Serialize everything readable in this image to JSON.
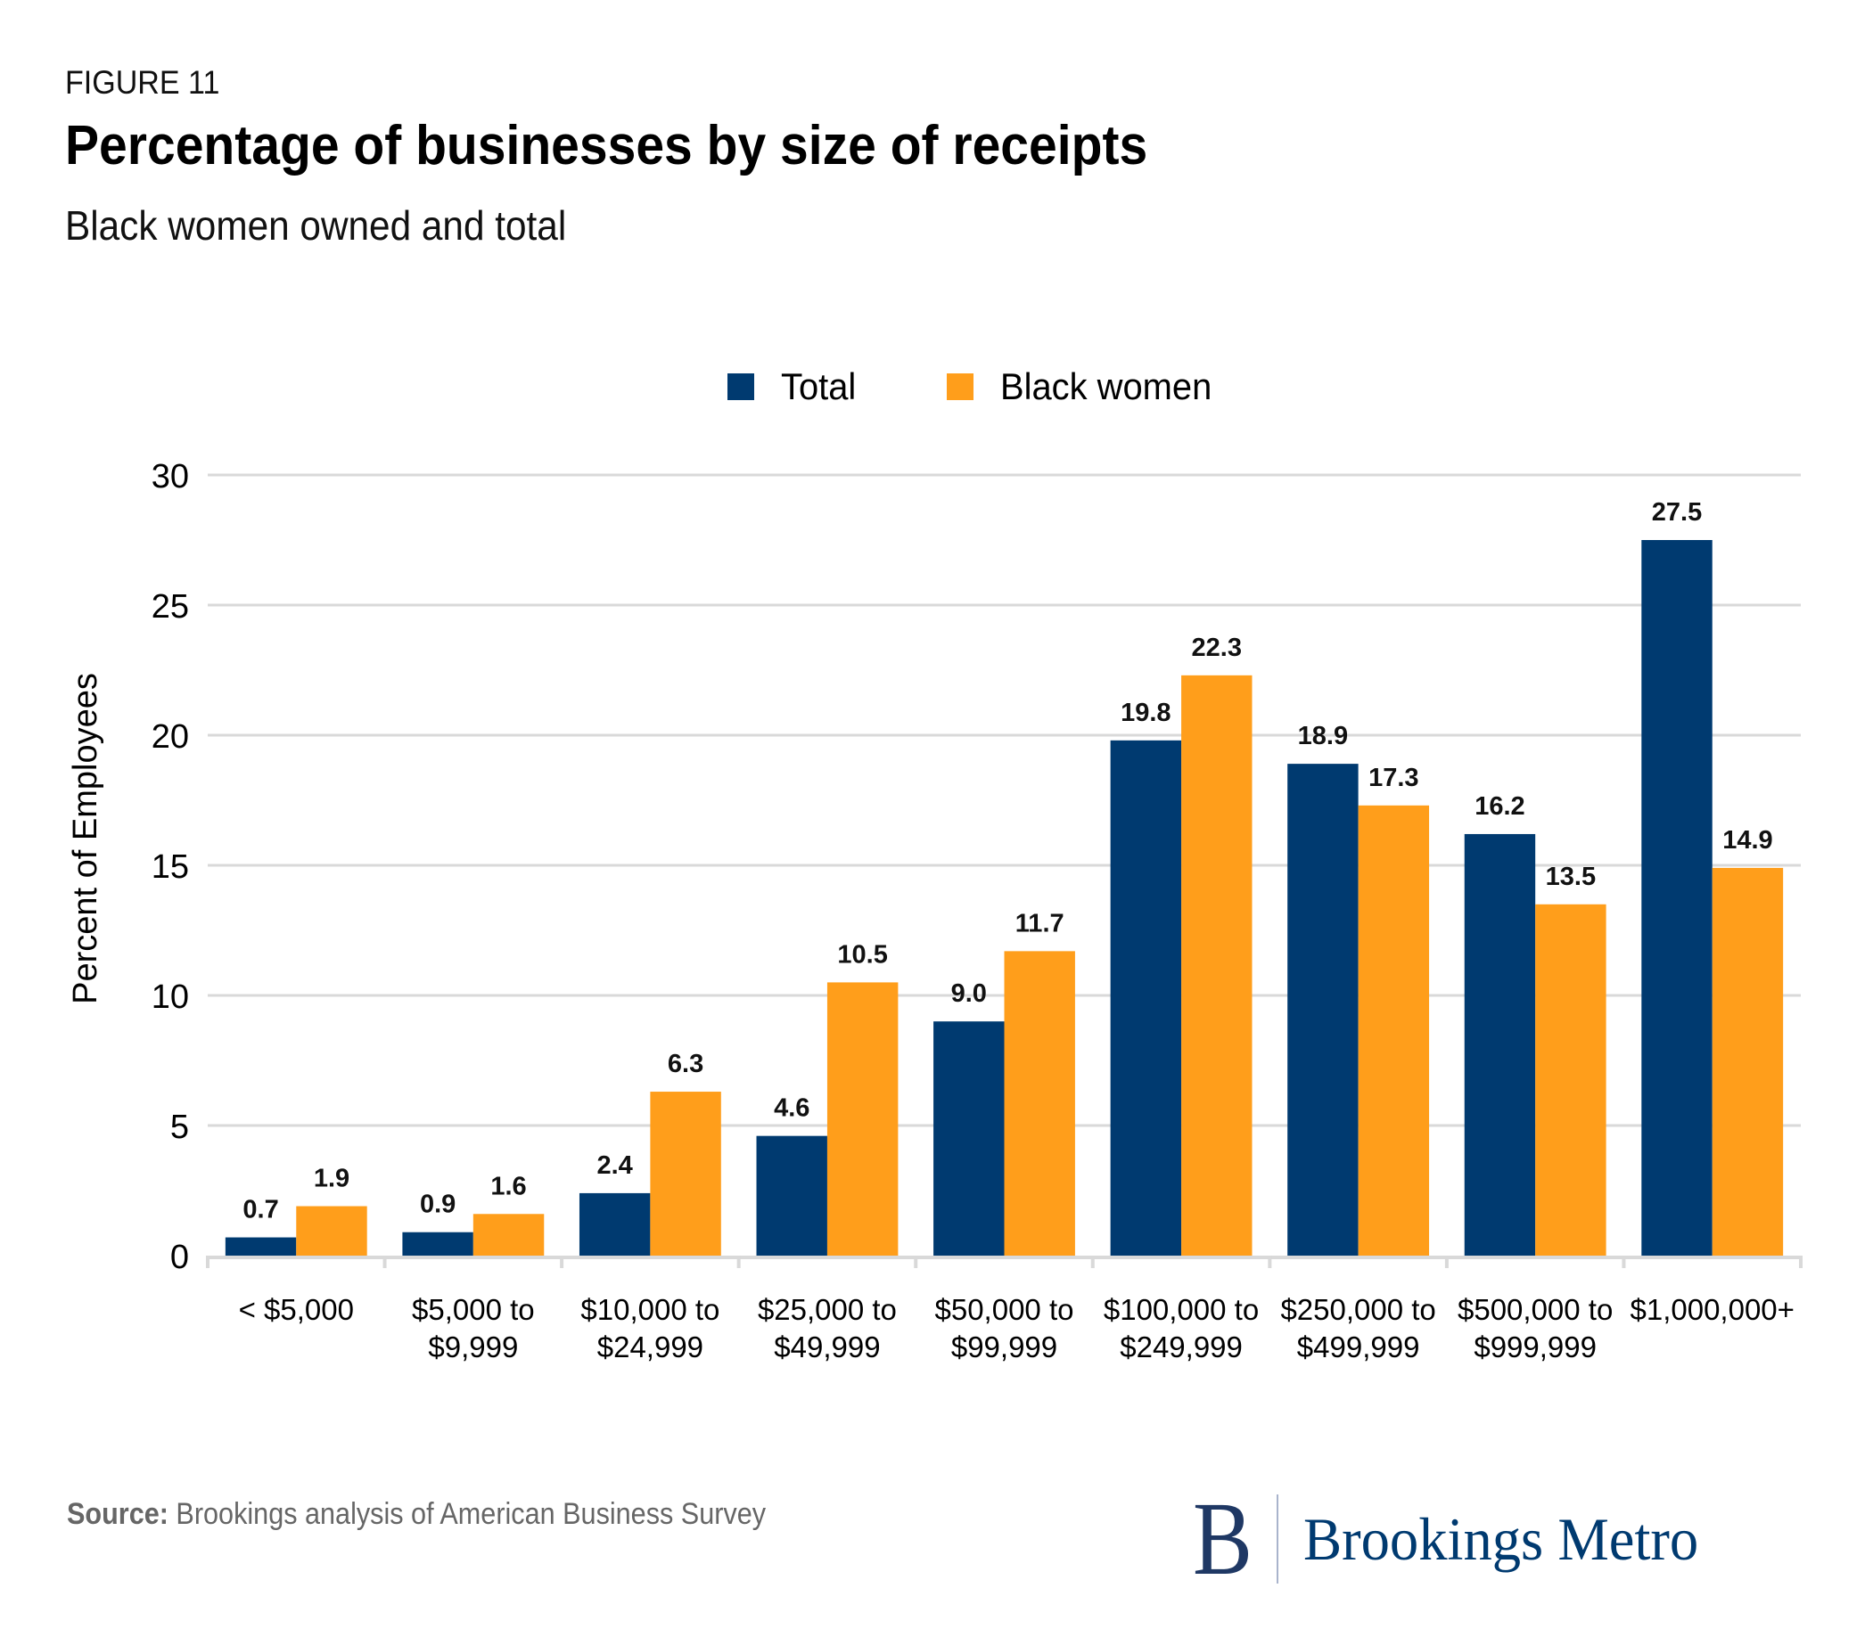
{
  "figure_label": "FIGURE 11",
  "title": "Percentage of businesses by size of receipts",
  "subtitle": "Black women owned and total",
  "legend": [
    {
      "label": "Total",
      "color": "#003a70"
    },
    {
      "label": "Black women",
      "color": "#ff9e1b"
    }
  ],
  "source": {
    "label": "Source:",
    "text": " Brookings analysis of American Business Survey"
  },
  "logo": {
    "mark": "B",
    "text": "Brookings Metro"
  },
  "chart_data": {
    "type": "bar",
    "title": "Percentage of businesses by size of receipts",
    "subtitle": "Black women owned and total",
    "xlabel": "",
    "ylabel": "Percent of Employees",
    "ylim": [
      0,
      30
    ],
    "yticks": [
      0,
      5,
      10,
      15,
      20,
      25,
      30
    ],
    "grid": true,
    "legend_position": "top-center",
    "categories": [
      [
        "< $5,000"
      ],
      [
        "$5,000 to",
        "$9,999"
      ],
      [
        "$10,000 to",
        "$24,999"
      ],
      [
        "$25,000 to",
        "$49,999"
      ],
      [
        "$50,000 to",
        "$99,999"
      ],
      [
        "$100,000 to",
        "$249,999"
      ],
      [
        "$250,000 to",
        "$499,999"
      ],
      [
        "$500,000 to",
        "$999,999"
      ],
      [
        "$1,000,000+"
      ]
    ],
    "series": [
      {
        "name": "Total",
        "color": "#003a70",
        "values": [
          0.7,
          0.9,
          2.4,
          4.6,
          9.0,
          19.8,
          18.9,
          16.2,
          27.5
        ],
        "labels": [
          "0.7",
          "0.9",
          "2.4",
          "4.6",
          "9.0",
          "19.8",
          "18.9",
          "16.2",
          "27.5"
        ]
      },
      {
        "name": "Black women",
        "color": "#ff9e1b",
        "values": [
          1.9,
          1.6,
          6.3,
          10.5,
          11.7,
          22.3,
          17.3,
          13.5,
          14.9
        ],
        "labels": [
          "1.9",
          "1.6",
          "6.3",
          "10.5",
          "11.7",
          "22.3",
          "17.3",
          "13.5",
          "14.9"
        ]
      }
    ]
  }
}
